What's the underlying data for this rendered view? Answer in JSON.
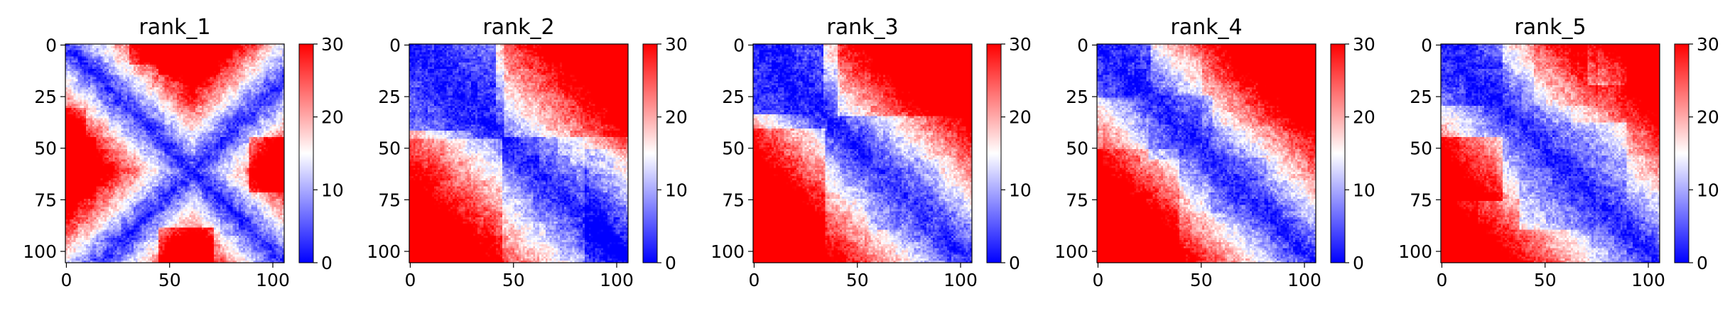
{
  "colors": {
    "cmap_low": "#0000ff",
    "cmap_mid": "#ffffff",
    "cmap_high": "#ff0000"
  },
  "chart_data": [
    {
      "type": "heatmap",
      "title": "rank_1",
      "size": 106,
      "x_ticks": [
        0,
        50,
        100
      ],
      "y_ticks": [
        0,
        25,
        50,
        75,
        100
      ],
      "colorbar": {
        "range": [
          0,
          30
        ],
        "ticks": [
          0,
          10,
          20,
          30
        ]
      },
      "pattern": "X-shaped domains: blue diagonal and anti-diagonal arms from the centre (~60), red off-diagonal wings at rows/cols 45-70, red patches near (0,60) and (100,60)"
    },
    {
      "type": "heatmap",
      "title": "rank_2",
      "size": 106,
      "x_ticks": [
        0,
        50,
        100
      ],
      "y_ticks": [
        0,
        25,
        50,
        75,
        100
      ],
      "colorbar": {
        "range": [
          0,
          30
        ],
        "ticks": [
          0,
          10,
          20,
          30
        ]
      },
      "pattern": "blue band along diagonal widening to a block at 0-40, red lower-left block, pink/red upper-right, small blue block near 60-85"
    },
    {
      "type": "heatmap",
      "title": "rank_3",
      "size": 106,
      "x_ticks": [
        0,
        50,
        100
      ],
      "y_ticks": [
        0,
        25,
        50,
        75,
        100
      ],
      "colorbar": {
        "range": [
          0,
          30
        ],
        "ticks": [
          0,
          10,
          20,
          30
        ]
      },
      "pattern": "blue diagonal band, blue block 0-30, strong red lower-left and upper-right off-diagonal regions, light blocks near 60-90"
    },
    {
      "type": "heatmap",
      "title": "rank_4",
      "size": 106,
      "x_ticks": [
        0,
        50,
        100
      ],
      "y_ticks": [
        0,
        25,
        50,
        75,
        100
      ],
      "colorbar": {
        "range": [
          0,
          30
        ],
        "ticks": [
          0,
          10,
          20,
          30
        ]
      },
      "pattern": "blue diagonal with several square domains (0-25, 25-55, 55-80), red blocks in lower-left 50-100 and upper-right, mixed whites"
    },
    {
      "type": "heatmap",
      "title": "rank_5",
      "size": 106,
      "x_ticks": [
        0,
        50,
        100
      ],
      "y_ticks": [
        0,
        25,
        50,
        75,
        100
      ],
      "colorbar": {
        "range": [
          0,
          30
        ],
        "ticks": [
          0,
          10,
          20,
          30
        ]
      },
      "pattern": "blue diagonal band, domains at 0-30 and 40-90, red left block rows 45-75, pink upper-right with light patches, mottled red lower-left"
    }
  ]
}
